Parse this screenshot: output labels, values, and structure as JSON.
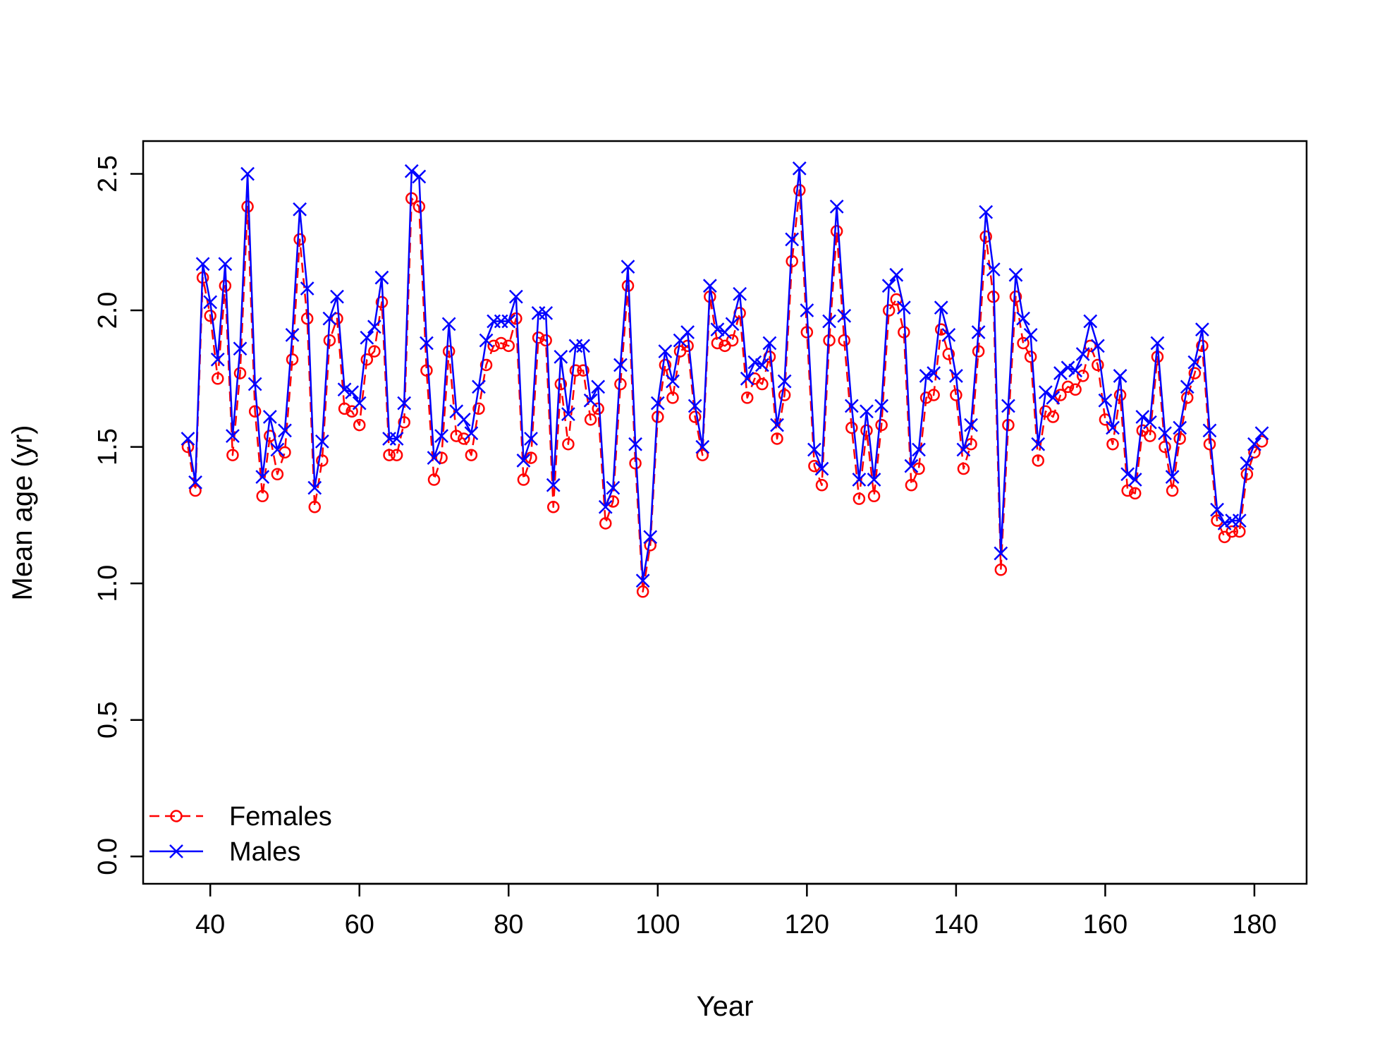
{
  "chart_data": {
    "type": "line",
    "title": "",
    "xlabel": "Year",
    "ylabel": "Mean age (yr)",
    "xlim": [
      31,
      187
    ],
    "ylim": [
      -0.1,
      2.62
    ],
    "x_ticks": [
      40,
      60,
      80,
      100,
      120,
      140,
      160,
      180
    ],
    "y_ticks": [
      0.0,
      0.5,
      1.0,
      1.5,
      2.0,
      2.5
    ],
    "x_tick_labels": [
      "40",
      "60",
      "80",
      "100",
      "120",
      "140",
      "160",
      "180"
    ],
    "y_tick_labels": [
      "0.0",
      "0.5",
      "1.0",
      "1.5",
      "2.0",
      "2.5"
    ],
    "grid": false,
    "legend_position": "bottom-left",
    "x": [
      37,
      38,
      39,
      40,
      41,
      42,
      43,
      44,
      45,
      46,
      47,
      48,
      49,
      50,
      51,
      52,
      53,
      54,
      55,
      56,
      57,
      58,
      59,
      60,
      61,
      62,
      63,
      64,
      65,
      66,
      67,
      68,
      69,
      70,
      71,
      72,
      73,
      74,
      75,
      76,
      77,
      78,
      79,
      80,
      81,
      82,
      83,
      84,
      85,
      86,
      87,
      88,
      89,
      90,
      91,
      92,
      93,
      94,
      95,
      96,
      97,
      98,
      99,
      100,
      101,
      102,
      103,
      104,
      105,
      106,
      107,
      108,
      109,
      110,
      111,
      112,
      113,
      114,
      115,
      116,
      117,
      118,
      119,
      120,
      121,
      122,
      123,
      124,
      125,
      126,
      127,
      128,
      129,
      130,
      131,
      132,
      133,
      134,
      135,
      136,
      137,
      138,
      139,
      140,
      141,
      142,
      143,
      144,
      145,
      146,
      147,
      148,
      149,
      150,
      151,
      152,
      153,
      154,
      155,
      156,
      157,
      158,
      159,
      160,
      161,
      162,
      163,
      164,
      165,
      166,
      167,
      168,
      169,
      170,
      171,
      172,
      173,
      174,
      175,
      176,
      177,
      178,
      179,
      180,
      181
    ],
    "series": [
      {
        "name": "Females",
        "color": "#ff0000",
        "marker": "circle",
        "line_style": "dashed",
        "values": [
          1.5,
          1.34,
          2.12,
          1.98,
          1.75,
          2.09,
          1.47,
          1.77,
          2.38,
          1.63,
          1.32,
          1.54,
          1.4,
          1.48,
          1.82,
          2.26,
          1.97,
          1.28,
          1.45,
          1.89,
          1.97,
          1.64,
          1.63,
          1.58,
          1.82,
          1.85,
          2.03,
          1.47,
          1.47,
          1.59,
          2.41,
          2.38,
          1.78,
          1.38,
          1.46,
          1.85,
          1.54,
          1.53,
          1.47,
          1.64,
          1.8,
          1.87,
          1.88,
          1.87,
          1.97,
          1.38,
          1.46,
          1.9,
          1.89,
          1.28,
          1.73,
          1.51,
          1.78,
          1.78,
          1.6,
          1.64,
          1.22,
          1.3,
          1.73,
          2.09,
          1.44,
          0.97,
          1.14,
          1.61,
          1.8,
          1.68,
          1.85,
          1.87,
          1.61,
          1.47,
          2.05,
          1.88,
          1.87,
          1.89,
          1.99,
          1.68,
          1.75,
          1.73,
          1.83,
          1.53,
          1.69,
          2.18,
          2.44,
          1.92,
          1.43,
          1.36,
          1.89,
          2.29,
          1.89,
          1.57,
          1.31,
          1.56,
          1.32,
          1.58,
          2.0,
          2.04,
          1.92,
          1.36,
          1.42,
          1.68,
          1.69,
          1.93,
          1.84,
          1.69,
          1.42,
          1.51,
          1.85,
          2.27,
          2.05,
          1.05,
          1.58,
          2.05,
          1.88,
          1.83,
          1.45,
          1.63,
          1.61,
          1.69,
          1.72,
          1.71,
          1.76,
          1.87,
          1.8,
          1.6,
          1.51,
          1.69,
          1.34,
          1.33,
          1.56,
          1.54,
          1.83,
          1.5,
          1.34,
          1.53,
          1.68,
          1.77,
          1.87,
          1.51,
          1.23,
          1.17,
          1.19,
          1.19,
          1.4,
          1.48,
          1.52
        ]
      },
      {
        "name": "Males",
        "color": "#0000ff",
        "marker": "cross",
        "line_style": "solid",
        "values": [
          1.53,
          1.37,
          2.17,
          2.03,
          1.82,
          2.17,
          1.54,
          1.86,
          2.5,
          1.73,
          1.39,
          1.61,
          1.49,
          1.56,
          1.91,
          2.37,
          2.08,
          1.35,
          1.52,
          1.97,
          2.05,
          1.71,
          1.7,
          1.66,
          1.9,
          1.94,
          2.12,
          1.53,
          1.53,
          1.66,
          2.51,
          2.49,
          1.88,
          1.46,
          1.54,
          1.95,
          1.63,
          1.6,
          1.55,
          1.72,
          1.89,
          1.96,
          1.96,
          1.96,
          2.05,
          1.45,
          1.53,
          1.99,
          1.99,
          1.36,
          1.83,
          1.62,
          1.87,
          1.87,
          1.67,
          1.72,
          1.28,
          1.35,
          1.8,
          2.16,
          1.51,
          1.01,
          1.17,
          1.66,
          1.85,
          1.74,
          1.89,
          1.92,
          1.65,
          1.5,
          2.09,
          1.93,
          1.92,
          1.95,
          2.06,
          1.75,
          1.81,
          1.8,
          1.88,
          1.58,
          1.74,
          2.26,
          2.52,
          2.0,
          1.49,
          1.42,
          1.96,
          2.38,
          1.98,
          1.65,
          1.38,
          1.63,
          1.38,
          1.65,
          2.09,
          2.13,
          2.01,
          1.43,
          1.49,
          1.76,
          1.77,
          2.01,
          1.91,
          1.76,
          1.49,
          1.58,
          1.92,
          2.36,
          2.15,
          1.11,
          1.65,
          2.13,
          1.97,
          1.91,
          1.51,
          1.7,
          1.68,
          1.77,
          1.79,
          1.78,
          1.84,
          1.96,
          1.87,
          1.67,
          1.57,
          1.76,
          1.4,
          1.38,
          1.61,
          1.59,
          1.88,
          1.55,
          1.39,
          1.57,
          1.72,
          1.81,
          1.93,
          1.56,
          1.27,
          1.22,
          1.23,
          1.23,
          1.44,
          1.51,
          1.55
        ]
      }
    ]
  }
}
